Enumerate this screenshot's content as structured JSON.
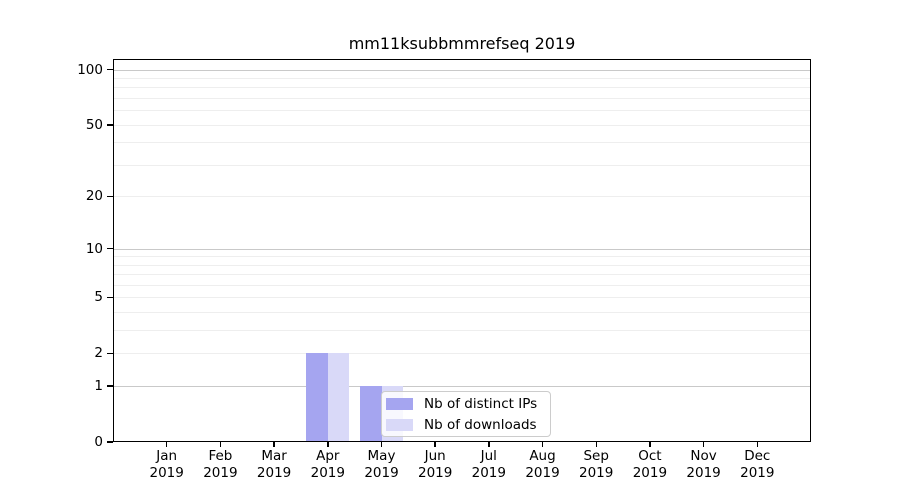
{
  "figure": {
    "title": "mm11ksubbmmrefseq 2019"
  },
  "colors": {
    "background": "#ffffff",
    "bar_distinct_ips": "#a5a5f0",
    "bar_downloads": "#d9d9f8",
    "grid_major": "#c9c9c9",
    "grid_minor": "#eeeeee",
    "spine": "#000000",
    "legend_border": "#cccccc",
    "text": "#000000"
  },
  "chart_data": {
    "type": "bar",
    "title": "mm11ksubbmmrefseq 2019",
    "categories": [
      "Jan 2019",
      "Feb 2019",
      "Mar 2019",
      "Apr 2019",
      "May 2019",
      "Jun 2019",
      "Jul 2019",
      "Aug 2019",
      "Sep 2019",
      "Oct 2019",
      "Nov 2019",
      "Dec 2019"
    ],
    "x_tick_months": [
      "Jan",
      "Feb",
      "Mar",
      "Apr",
      "May",
      "Jun",
      "Jul",
      "Aug",
      "Sep",
      "Oct",
      "Nov",
      "Dec"
    ],
    "x_tick_year": "2019",
    "series": [
      {
        "key": "distinct_ips",
        "name": "Nb of distinct IPs",
        "color": "#a5a5f0",
        "values": [
          0,
          0,
          0,
          2,
          1,
          0,
          0,
          0,
          0,
          0,
          0,
          0
        ]
      },
      {
        "key": "downloads",
        "name": "Nb of downloads",
        "color": "#d9d9f8",
        "values": [
          0,
          0,
          0,
          2,
          1,
          0,
          0,
          0,
          0,
          0,
          0,
          0
        ]
      }
    ],
    "xlabel": "",
    "ylabel": "",
    "y_axis": {
      "scale": "log1p",
      "tick_values": [
        0,
        1,
        2,
        5,
        10,
        20,
        50,
        100
      ],
      "tick_labels": [
        "0",
        "1",
        "2",
        "5",
        "10",
        "20",
        "50",
        "100"
      ],
      "major_gridline_values": [
        1,
        10,
        100
      ],
      "minor_gridline_values": [
        2,
        3,
        4,
        5,
        6,
        7,
        8,
        9,
        20,
        30,
        40,
        50,
        60,
        70,
        80,
        90
      ],
      "ylim": [
        0,
        113
      ]
    },
    "grid": true,
    "legend": {
      "position": "lower center",
      "entries": [
        "Nb of distinct IPs",
        "Nb of downloads"
      ]
    }
  }
}
